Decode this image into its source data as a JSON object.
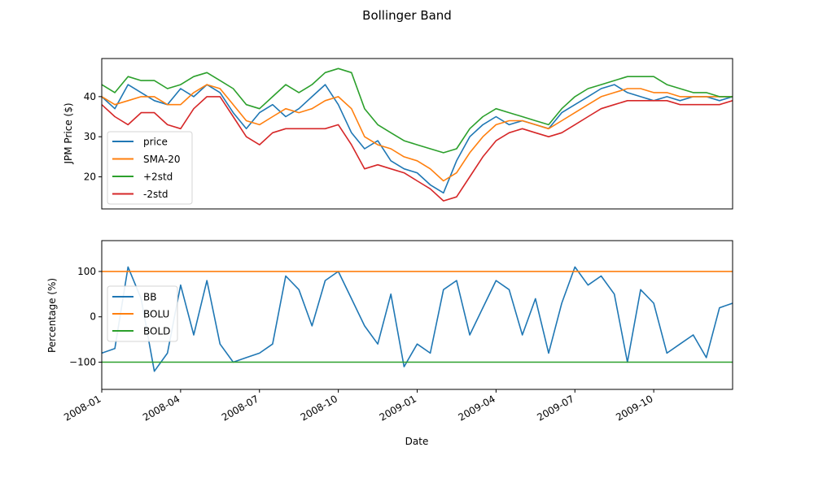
{
  "chart_data": {
    "title": "Bollinger Band",
    "xlabel": "Date",
    "x_ticks": [
      "2008-01",
      "2008-04",
      "2008-07",
      "2008-10",
      "2009-01",
      "2009-04",
      "2009-07",
      "2009-10"
    ],
    "x_tick_months": [
      0,
      3,
      6,
      9,
      12,
      15,
      18,
      21
    ],
    "x_range_months": [
      0,
      24
    ],
    "panels": [
      {
        "type": "line",
        "ylabel": "JPM Price ($)",
        "ylim": [
          12,
          49.5
        ],
        "y_ticks": [
          20,
          30,
          40
        ],
        "legend_position": "lower-left",
        "series": [
          {
            "name": "price",
            "color": "#1f77b4",
            "x": [
              0,
              0.5,
              1,
              1.5,
              2,
              2.5,
              3,
              3.5,
              4,
              4.5,
              5,
              5.5,
              6,
              6.5,
              7,
              7.5,
              8,
              8.5,
              9,
              9.5,
              10,
              10.5,
              11,
              11.5,
              12,
              12.5,
              13,
              13.5,
              14,
              14.5,
              15,
              15.5,
              16,
              16.5,
              17,
              17.5,
              18,
              18.5,
              19,
              19.5,
              20,
              20.5,
              21,
              21.5,
              22,
              22.5,
              23,
              23.5,
              24
            ],
            "y": [
              40,
              37,
              43,
              41,
              39,
              38,
              42,
              40,
              43,
              41,
              36,
              32,
              36,
              38,
              35,
              37,
              40,
              43,
              38,
              31,
              27,
              29,
              24,
              22,
              21,
              18,
              16,
              24,
              30,
              33,
              35,
              33,
              34,
              33,
              32,
              36,
              38,
              40,
              42,
              43,
              41,
              40,
              39,
              40,
              39,
              40,
              40,
              39,
              40
            ]
          },
          {
            "name": "SMA-20",
            "color": "#ff7f0e",
            "x": [
              0,
              0.5,
              1,
              1.5,
              2,
              2.5,
              3,
              3.5,
              4,
              4.5,
              5,
              5.5,
              6,
              6.5,
              7,
              7.5,
              8,
              8.5,
              9,
              9.5,
              10,
              10.5,
              11,
              11.5,
              12,
              12.5,
              13,
              13.5,
              14,
              14.5,
              15,
              15.5,
              16,
              16.5,
              17,
              17.5,
              18,
              18.5,
              19,
              19.5,
              20,
              20.5,
              21,
              21.5,
              22,
              22.5,
              23,
              23.5,
              24
            ],
            "y": [
              40,
              38,
              39,
              40,
              40,
              38,
              38,
              41,
              43,
              42,
              38,
              34,
              33,
              35,
              37,
              36,
              37,
              39,
              40,
              37,
              30,
              28,
              27,
              25,
              24,
              22,
              19,
              21,
              26,
              30,
              33,
              34,
              34,
              33,
              32,
              34,
              36,
              38,
              40,
              41,
              42,
              42,
              41,
              41,
              40,
              40,
              40,
              40,
              40
            ]
          },
          {
            "name": "+2std",
            "color": "#2ca02c",
            "x": [
              0,
              0.5,
              1,
              1.5,
              2,
              2.5,
              3,
              3.5,
              4,
              4.5,
              5,
              5.5,
              6,
              6.5,
              7,
              7.5,
              8,
              8.5,
              9,
              9.5,
              10,
              10.5,
              11,
              11.5,
              12,
              12.5,
              13,
              13.5,
              14,
              14.5,
              15,
              15.5,
              16,
              16.5,
              17,
              17.5,
              18,
              18.5,
              19,
              19.5,
              20,
              20.5,
              21,
              21.5,
              22,
              22.5,
              23,
              23.5,
              24
            ],
            "y": [
              43,
              41,
              45,
              44,
              44,
              42,
              43,
              45,
              46,
              44,
              42,
              38,
              37,
              40,
              43,
              41,
              43,
              46,
              47,
              46,
              37,
              33,
              31,
              29,
              28,
              27,
              26,
              27,
              32,
              35,
              37,
              36,
              35,
              34,
              33,
              37,
              40,
              42,
              43,
              44,
              45,
              45,
              45,
              43,
              42,
              41,
              41,
              40,
              40
            ]
          },
          {
            "name": "-2std",
            "color": "#d62728",
            "x": [
              0,
              0.5,
              1,
              1.5,
              2,
              2.5,
              3,
              3.5,
              4,
              4.5,
              5,
              5.5,
              6,
              6.5,
              7,
              7.5,
              8,
              8.5,
              9,
              9.5,
              10,
              10.5,
              11,
              11.5,
              12,
              12.5,
              13,
              13.5,
              14,
              14.5,
              15,
              15.5,
              16,
              16.5,
              17,
              17.5,
              18,
              18.5,
              19,
              19.5,
              20,
              20.5,
              21,
              21.5,
              22,
              22.5,
              23,
              23.5,
              24
            ],
            "y": [
              38,
              35,
              33,
              36,
              36,
              33,
              32,
              37,
              40,
              40,
              35,
              30,
              28,
              31,
              32,
              32,
              32,
              32,
              33,
              28,
              22,
              23,
              22,
              21,
              19,
              17,
              14,
              15,
              20,
              25,
              29,
              31,
              32,
              31,
              30,
              31,
              33,
              35,
              37,
              38,
              39,
              39,
              39,
              39,
              38,
              38,
              38,
              38,
              39
            ]
          }
        ]
      },
      {
        "type": "line",
        "ylabel": "Percentage (%)",
        "ylim": [
          -160,
          168
        ],
        "y_ticks": [
          -100,
          0,
          100
        ],
        "legend_position": "center-left",
        "series": [
          {
            "name": "BB",
            "color": "#1f77b4",
            "x": [
              0,
              0.5,
              1,
              1.5,
              2,
              2.5,
              3,
              3.5,
              4,
              4.5,
              5,
              5.5,
              6,
              6.5,
              7,
              7.5,
              8,
              8.5,
              9,
              9.5,
              10,
              10.5,
              11,
              11.5,
              12,
              12.5,
              13,
              13.5,
              14,
              14.5,
              15,
              15.5,
              16,
              16.5,
              17,
              17.5,
              18,
              18.5,
              19,
              19.5,
              20,
              20.5,
              21,
              21.5,
              22,
              22.5,
              23,
              23.5,
              24
            ],
            "y": [
              -80,
              -70,
              110,
              40,
              -120,
              -80,
              70,
              -40,
              80,
              -60,
              -100,
              -90,
              -80,
              -60,
              90,
              60,
              -20,
              80,
              100,
              40,
              -20,
              -60,
              50,
              -110,
              -60,
              -80,
              60,
              80,
              -40,
              20,
              80,
              60,
              -40,
              40,
              -80,
              30,
              110,
              70,
              90,
              50,
              -100,
              60,
              30,
              -80,
              -60,
              -40,
              -90,
              20,
              30
            ]
          },
          {
            "name": "BOLU",
            "color": "#ff7f0e",
            "x": [
              0,
              24
            ],
            "y": [
              100,
              100
            ]
          },
          {
            "name": "BOLD",
            "color": "#2ca02c",
            "x": [
              0,
              24
            ],
            "y": [
              -100,
              -100
            ]
          }
        ]
      }
    ]
  }
}
